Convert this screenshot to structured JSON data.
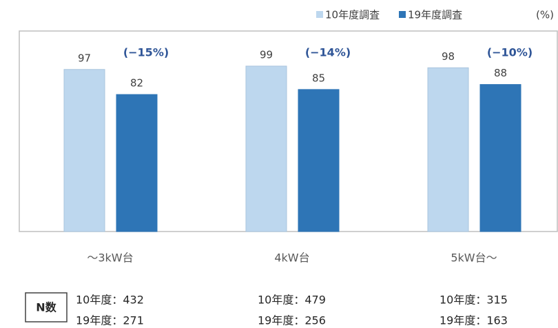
{
  "chart_data": {
    "type": "bar",
    "unit_label": "(%)",
    "categories": [
      "〜3kW台",
      "4kW台",
      "5kW台〜"
    ],
    "series": [
      {
        "name": "10年度調査",
        "color": "#bdd7ee",
        "values": [
          97,
          99,
          98
        ]
      },
      {
        "name": "19年度調査",
        "color": "#2e75b6",
        "values": [
          82,
          85,
          88
        ]
      }
    ],
    "change_labels": [
      "(−15%)",
      "(−14%)",
      "(−10%)"
    ],
    "ylim": [
      0,
      120
    ]
  },
  "sample_sizes": {
    "title": "N数",
    "columns": [
      [
        "10年度：432",
        "19年度：271"
      ],
      [
        "10年度：479",
        "19年度：256"
      ],
      [
        "10年度：315",
        "19年度：163"
      ]
    ]
  }
}
